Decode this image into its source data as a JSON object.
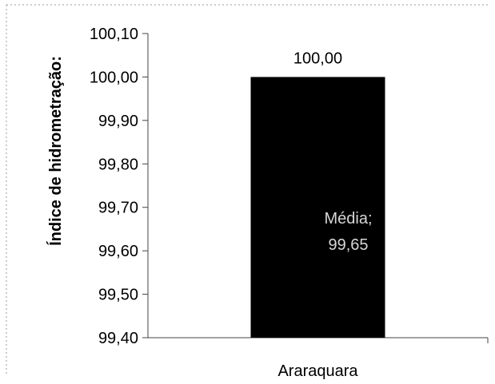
{
  "chart_data": {
    "type": "bar",
    "categories": [
      "Araraquara"
    ],
    "values": [
      100.0
    ],
    "value_labels": [
      "100,00"
    ],
    "ylabel": "Índice de hidrometração:",
    "ylim": [
      99.4,
      100.1
    ],
    "yticks": [
      99.4,
      99.5,
      99.6,
      99.7,
      99.8,
      99.9,
      100.0,
      100.1
    ],
    "ytick_labels": [
      "99,40",
      "99,50",
      "99,60",
      "99,70",
      "99,80",
      "99,90",
      "100,00",
      "100,10"
    ],
    "overlay_text": [
      "Média;",
      "99,65"
    ],
    "grid": false,
    "legend": "none",
    "colors": {
      "bar": "#000000",
      "axis": "#444444",
      "text": "#000000",
      "overlay_text": "#d6d6d6"
    }
  }
}
